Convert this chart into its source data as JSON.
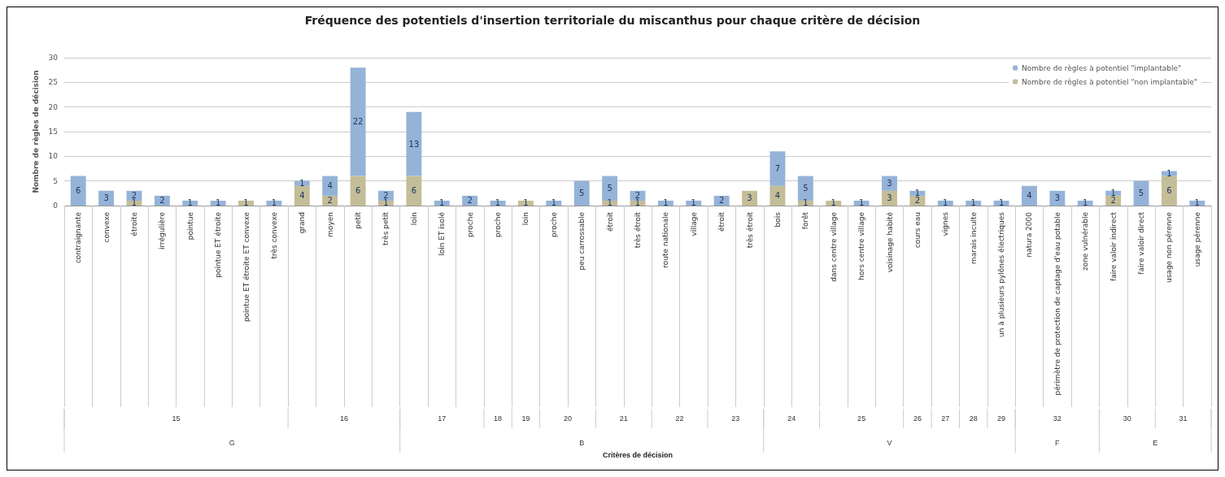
{
  "chart_data": {
    "type": "bar",
    "title": "Fréquence des potentiels d'insertion territoriale du miscanthus pour chaque critère de décision",
    "ylabel": "Nombre de règles de décision",
    "categories": [
      "contraignante",
      "convexe",
      "étroite",
      "irrégulière",
      "pointue",
      "pointue ET étroite",
      "pointue ET étroite ET convexe",
      "très convexe",
      "grand",
      "moyen",
      "petit",
      "très petit",
      "loin",
      "loin ET isolé",
      "proche",
      "proche",
      "loin",
      "proche",
      "peu carrossable",
      "étroit",
      "très étroit",
      "route nationale",
      "village",
      "étroit",
      "très étroit",
      "bois",
      "forêt",
      "dans centre village",
      "hors centre village",
      "voisinage habité",
      "cours eau",
      "vignes",
      "marais inculte",
      "un à plusieurs pylônes électriques",
      "natura 2000",
      "périmètre de protection de captage d'eau potable",
      "zone vulnérable",
      "faire valoir indirect",
      "faire valoir direct",
      "usage non pérenne",
      "usage pérenne"
    ],
    "stacked": true,
    "series": [
      {
        "name": "Nombre de règles à potentiel \"non implantable\"",
        "color": "#c4bd97",
        "values": [
          null,
          null,
          1,
          null,
          null,
          null,
          1,
          null,
          4,
          2,
          6,
          1,
          6,
          null,
          null,
          null,
          1,
          null,
          null,
          1,
          1,
          null,
          null,
          null,
          3,
          4,
          1,
          1,
          null,
          3,
          2,
          null,
          null,
          null,
          null,
          null,
          null,
          2,
          null,
          6,
          null
        ]
      },
      {
        "name": "Nombre de règles à potentiel \"implantable\"",
        "color": "#95b3d7",
        "values": [
          6,
          3,
          2,
          2,
          1,
          1,
          null,
          1,
          1,
          4,
          22,
          2,
          13,
          1,
          2,
          1,
          null,
          1,
          5,
          5,
          2,
          1,
          1,
          2,
          null,
          7,
          5,
          null,
          1,
          3,
          1,
          1,
          1,
          1,
          4,
          3,
          1,
          1,
          5,
          1,
          1
        ]
      }
    ],
    "ylim": [
      0,
      30
    ],
    "yticks": [
      0,
      5,
      10,
      15,
      20,
      25,
      30
    ],
    "grid": "y",
    "legend": "top right",
    "data_labels": true,
    "annotations": [
      "15",
      "16",
      "17",
      "18",
      "19",
      "20",
      "21",
      "22",
      "23",
      "24",
      "25",
      "26",
      "27",
      "28",
      "29",
      "32",
      "30",
      "31",
      "G",
      "B",
      "V",
      "F",
      "E",
      "Critères de décision"
    ]
  }
}
